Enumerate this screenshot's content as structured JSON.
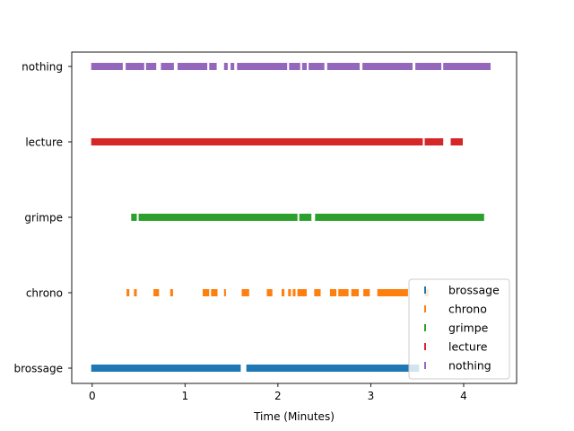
{
  "chart_data": {
    "type": "event-raster",
    "title": "",
    "xlabel": "Time (Minutes)",
    "ylabel": "",
    "xlim": [
      -0.22,
      4.57
    ],
    "x_ticks": [
      0,
      1,
      2,
      3,
      4
    ],
    "categories": [
      "brossage",
      "chrono",
      "grimpe",
      "lecture",
      "nothing"
    ],
    "legend": {
      "placement": "lower-right",
      "entries": [
        "brossage",
        "chrono",
        "grimpe",
        "lecture",
        "nothing"
      ]
    },
    "grid": false,
    "series": [
      {
        "name": "brossage",
        "color": "#1f77b4",
        "intervals": [
          [
            -0.01,
            1.6
          ],
          [
            1.66,
            3.52
          ]
        ]
      },
      {
        "name": "chrono",
        "color": "#ff7f0e",
        "intervals": [
          [
            0.37,
            0.4
          ],
          [
            0.45,
            0.48
          ],
          [
            0.66,
            0.72
          ],
          [
            0.84,
            0.87
          ],
          [
            1.19,
            1.26
          ],
          [
            1.28,
            1.35
          ],
          [
            1.42,
            1.44
          ],
          [
            1.61,
            1.69
          ],
          [
            1.88,
            1.94
          ],
          [
            2.04,
            2.07
          ],
          [
            2.11,
            2.14
          ],
          [
            2.16,
            2.19
          ],
          [
            2.21,
            2.31
          ],
          [
            2.39,
            2.46
          ],
          [
            2.56,
            2.63
          ],
          [
            2.65,
            2.76
          ],
          [
            2.79,
            2.87
          ],
          [
            2.92,
            2.99
          ],
          [
            3.07,
            3.4
          ],
          [
            3.58,
            3.62
          ]
        ]
      },
      {
        "name": "grimpe",
        "color": "#2ca02c",
        "intervals": [
          [
            0.42,
            0.48
          ],
          [
            0.5,
            2.21
          ],
          [
            2.23,
            2.36
          ],
          [
            2.4,
            4.22
          ]
        ]
      },
      {
        "name": "lecture",
        "color": "#d62728",
        "intervals": [
          [
            -0.01,
            3.56
          ],
          [
            3.58,
            3.78
          ],
          [
            3.86,
            3.99
          ]
        ]
      },
      {
        "name": "nothing",
        "color": "#9467bd",
        "intervals": [
          [
            -0.01,
            0.33
          ],
          [
            0.36,
            0.56
          ],
          [
            0.58,
            0.69
          ],
          [
            0.74,
            0.88
          ],
          [
            0.92,
            1.24
          ],
          [
            1.26,
            1.34
          ],
          [
            1.42,
            1.46
          ],
          [
            1.49,
            1.53
          ],
          [
            1.56,
            2.1
          ],
          [
            2.12,
            2.24
          ],
          [
            2.26,
            2.31
          ],
          [
            2.33,
            2.5
          ],
          [
            2.53,
            2.88
          ],
          [
            2.91,
            3.45
          ],
          [
            3.48,
            3.76
          ],
          [
            3.78,
            4.29
          ]
        ]
      }
    ]
  }
}
